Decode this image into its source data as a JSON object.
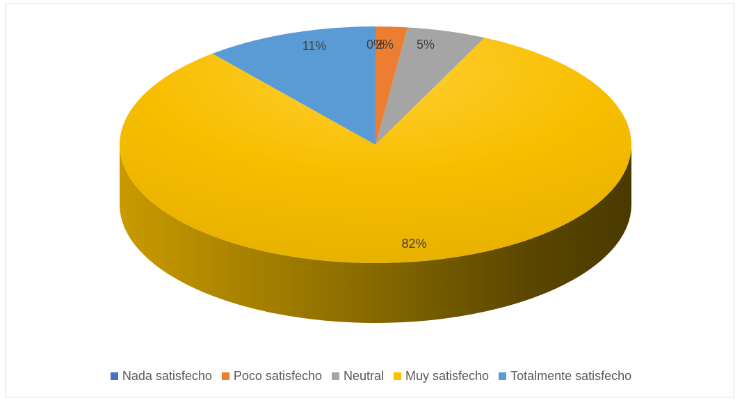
{
  "chart_data": {
    "type": "pie",
    "style": "3d",
    "title": "",
    "categories": [
      "Nada satisfecho",
      "Poco satisfecho",
      "Neutral",
      "Muy satisfecho",
      "Totalmente satisfecho"
    ],
    "values": [
      0,
      2,
      5,
      82,
      11
    ],
    "data_labels": [
      "0%",
      "2%",
      "5%",
      "82%",
      "11%"
    ],
    "colors": [
      "#4472c4",
      "#ed7d31",
      "#a5a5a5",
      "#ffc000",
      "#5b9bd5"
    ],
    "legend_position": "bottom"
  }
}
